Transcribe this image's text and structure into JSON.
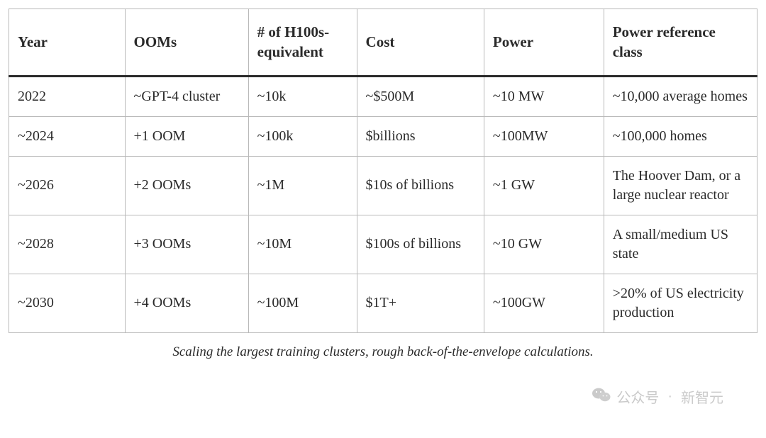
{
  "table": {
    "type": "table",
    "background_color": "#ffffff",
    "border_color": "#b8b8b8",
    "header_separator_color": "#2a2a2a",
    "font_family": "Georgia, serif",
    "header_fontsize": 21,
    "cell_fontsize": 20,
    "columns": [
      {
        "key": "year",
        "label": "Year",
        "width_pct": 15.5
      },
      {
        "key": "ooms",
        "label": "OOMs",
        "width_pct": 16.5
      },
      {
        "key": "h100s",
        "label": "# of H100s-equivalent",
        "width_pct": 14.5
      },
      {
        "key": "cost",
        "label": "Cost",
        "width_pct": 17
      },
      {
        "key": "power",
        "label": "Power",
        "width_pct": 16
      },
      {
        "key": "power_ref",
        "label": "Power reference class",
        "width_pct": 20.5
      }
    ],
    "rows": [
      {
        "year": "2022",
        "ooms": "~GPT-4 cluster",
        "h100s": "~10k",
        "cost": "~$500M",
        "power": "~10 MW",
        "power_ref": "~10,000 average homes"
      },
      {
        "year": "~2024",
        "ooms": "+1 OOM",
        "h100s": "~100k",
        "cost": "$billions",
        "power": "~100MW",
        "power_ref": "~100,000 homes"
      },
      {
        "year": "~2026",
        "ooms": "+2 OOMs",
        "h100s": "~1M",
        "cost": "$10s of billions",
        "power": "~1 GW",
        "power_ref": "The Hoover Dam, or a large nuclear reactor"
      },
      {
        "year": "~2028",
        "ooms": "+3 OOMs",
        "h100s": "~10M",
        "cost": "$100s of billions",
        "power": "~10 GW",
        "power_ref": "A small/medium US state"
      },
      {
        "year": "~2030",
        "ooms": "+4 OOMs",
        "h100s": "~100M",
        "cost": "$1T+",
        "power": "~100GW",
        "power_ref": ">20% of US electricity production"
      }
    ]
  },
  "caption": "Scaling the largest training clusters, rough back-of-the-envelope calculations.",
  "watermark": {
    "prefix": "公众号",
    "separator": "·",
    "name": "新智元",
    "icon_color": "#bdbdbd"
  }
}
